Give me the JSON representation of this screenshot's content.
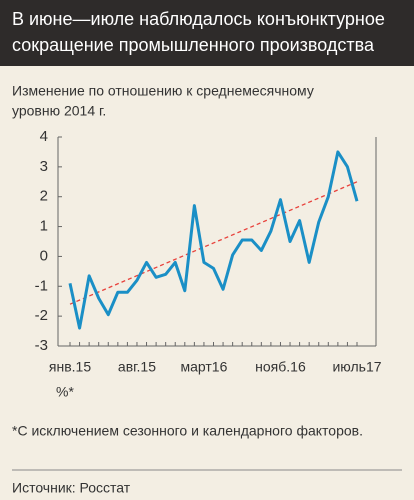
{
  "chart_data": {
    "type": "line",
    "title": [
      "В июне—июле наблюдалось конъюнктурное",
      "сокращение промышленного производства"
    ],
    "subtitle": [
      "Изменение по отношению к среднемесячному",
      "уровню 2014 г."
    ],
    "unit_label": "%*",
    "footnote": "*С исключением сезонного и календарного факторов.",
    "source": "Источник: Росстат",
    "categories": [
      "янв.15",
      null,
      null,
      null,
      null,
      null,
      null,
      "авг.15",
      null,
      null,
      null,
      null,
      null,
      null,
      "март16",
      null,
      null,
      null,
      null,
      null,
      null,
      null,
      "нояб.16",
      null,
      null,
      null,
      null,
      null,
      null,
      null,
      "июль17"
    ],
    "series": [
      {
        "color": "#1a8fc6",
        "values": [
          -0.9,
          -2.4,
          -0.65,
          -1.4,
          -1.95,
          -1.2,
          -1.2,
          -0.8,
          -0.2,
          -0.7,
          -0.6,
          -0.2,
          -1.15,
          1.7,
          -0.2,
          -0.4,
          -1.1,
          0.05,
          0.55,
          0.55,
          0.2,
          0.85,
          1.9,
          0.5,
          1.2,
          -0.2,
          1.15,
          2.0,
          3.5,
          3.0,
          1.85
        ]
      }
    ],
    "trendline": {
      "color": "#e8423c",
      "values": [
        -1.6,
        2.5
      ]
    },
    "ylim": [
      -3,
      4
    ],
    "yticks": [
      -3,
      -2,
      -1,
      0,
      1,
      2,
      3,
      4
    ]
  }
}
